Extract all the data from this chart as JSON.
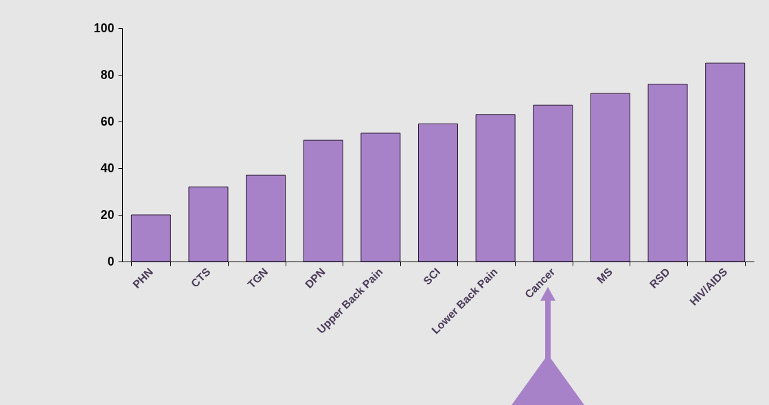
{
  "chart_data": {
    "type": "bar",
    "categories": [
      "PHN",
      "CTS",
      "TGN",
      "DPN",
      "Upper Back Pain",
      "SCI",
      "Lower Back Pain",
      "Cancer",
      "MS",
      "RSD",
      "HIV/AIDS"
    ],
    "values": [
      20,
      32,
      37,
      52,
      55,
      59,
      63,
      67,
      72,
      76,
      85
    ],
    "color": "#a882c8",
    "ylim": [
      0,
      100
    ],
    "yticks": [
      0,
      20,
      40,
      60,
      80,
      100
    ],
    "grid": false
  }
}
